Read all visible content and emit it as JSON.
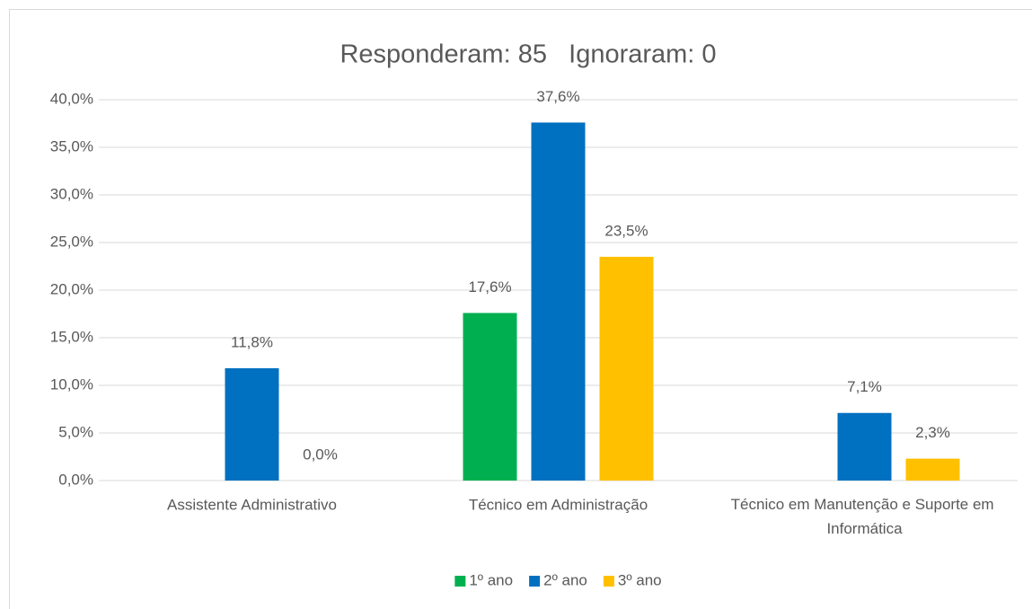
{
  "chart_data": {
    "type": "bar",
    "title": "Responderam: 85   Ignoraram: 0",
    "categories": [
      "Assistente Administrativo",
      "Técnico em Administração",
      "Técnico em Manutenção e Suporte em Informática"
    ],
    "series": [
      {
        "name": "1º ano",
        "color": "#00b050",
        "values": [
          null,
          17.6,
          null
        ],
        "value_labels": [
          null,
          "17,6%",
          null
        ]
      },
      {
        "name": "2º ano",
        "color": "#0070c0",
        "values": [
          11.8,
          37.6,
          7.1
        ],
        "value_labels": [
          "11,8%",
          "37,6%",
          "7,1%"
        ]
      },
      {
        "name": "3º ano",
        "color": "#ffc000",
        "values": [
          0.0,
          23.5,
          2.3
        ],
        "value_labels": [
          "0,0%",
          "23,5%",
          "2,3%"
        ]
      }
    ],
    "ylim": [
      0,
      40
    ],
    "yticks": [
      {
        "value": 0,
        "label": "0,0%"
      },
      {
        "value": 5,
        "label": "5,0%"
      },
      {
        "value": 10,
        "label": "10,0%"
      },
      {
        "value": 15,
        "label": "15,0%"
      },
      {
        "value": 20,
        "label": "20,0%"
      },
      {
        "value": 25,
        "label": "25,0%"
      },
      {
        "value": 30,
        "label": "30,0%"
      },
      {
        "value": 35,
        "label": "35,0%"
      },
      {
        "value": 40,
        "label": "40,0%"
      }
    ],
    "grid": true,
    "legend": "bottom"
  }
}
